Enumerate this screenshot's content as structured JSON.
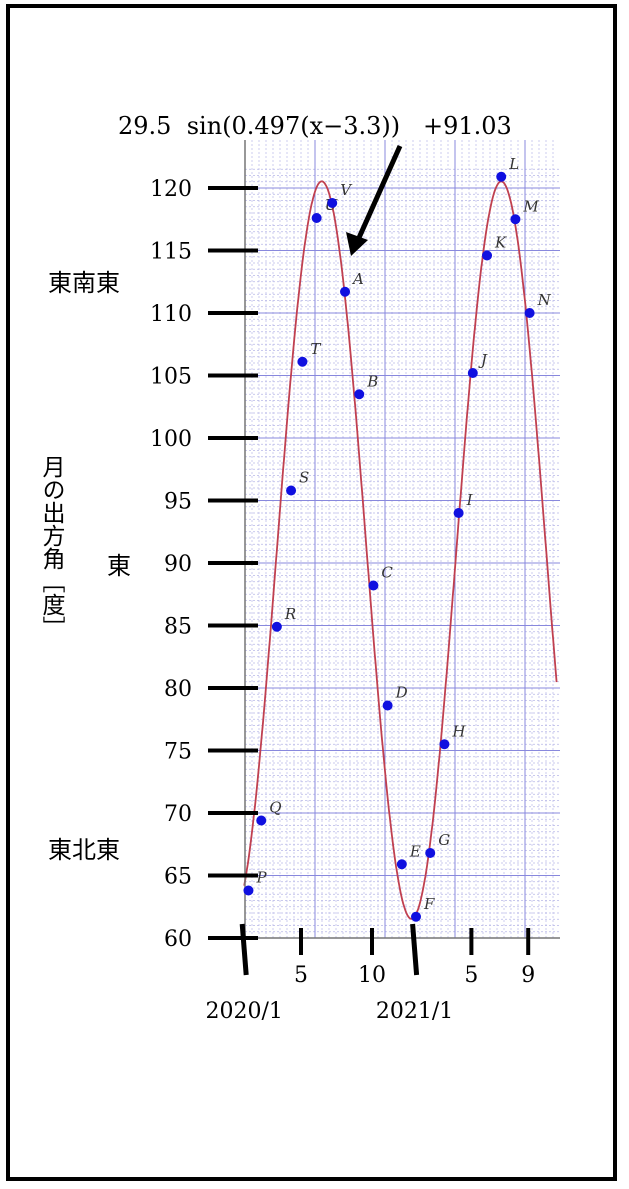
{
  "formula": "29.5  sin(0.497(x−3.3))   +91.03",
  "direction_labels": {
    "ese": "東南東",
    "e": "東",
    "ene": "東北東"
  },
  "chart_data": {
    "type": "scatter",
    "title": "",
    "ylabel": "月の出方角［度］",
    "xlabel": "",
    "ylim": [
      60,
      120
    ],
    "y_ticks": [
      60,
      65,
      70,
      75,
      80,
      85,
      90,
      95,
      100,
      105,
      110,
      115,
      120
    ],
    "x_ticks": [
      {
        "month": 5,
        "label": "5"
      },
      {
        "month": 10,
        "label": "10"
      },
      {
        "month": 17,
        "label": "5"
      },
      {
        "month": 21,
        "label": "9"
      }
    ],
    "year_labels": [
      {
        "month": 1,
        "label": "2020/1"
      },
      {
        "month": 13,
        "label": "2021/1"
      }
    ],
    "points": [
      {
        "label": "P",
        "x": 1.3,
        "y": 63.8
      },
      {
        "label": "Q",
        "x": 2.2,
        "y": 69.4
      },
      {
        "label": "R",
        "x": 3.3,
        "y": 84.9
      },
      {
        "label": "S",
        "x": 4.3,
        "y": 95.8
      },
      {
        "label": "T",
        "x": 5.1,
        "y": 106.1
      },
      {
        "label": "U",
        "x": 6.1,
        "y": 117.6
      },
      {
        "label": "V",
        "x": 7.2,
        "y": 118.8
      },
      {
        "label": "A",
        "x": 8.1,
        "y": 111.7
      },
      {
        "label": "B",
        "x": 9.1,
        "y": 103.5
      },
      {
        "label": "C",
        "x": 10.1,
        "y": 88.2
      },
      {
        "label": "D",
        "x": 11.1,
        "y": 78.6
      },
      {
        "label": "E",
        "x": 12.1,
        "y": 65.9
      },
      {
        "label": "F",
        "x": 13.1,
        "y": 61.7
      },
      {
        "label": "G",
        "x": 14.1,
        "y": 66.8
      },
      {
        "label": "H",
        "x": 15.1,
        "y": 75.5
      },
      {
        "label": "I",
        "x": 16.1,
        "y": 94.0
      },
      {
        "label": "J",
        "x": 17.1,
        "y": 105.2
      },
      {
        "label": "K",
        "x": 18.1,
        "y": 114.6
      },
      {
        "label": "L",
        "x": 19.1,
        "y": 120.9
      },
      {
        "label": "M",
        "x": 20.1,
        "y": 117.5
      },
      {
        "label": "N",
        "x": 21.1,
        "y": 110.0
      }
    ],
    "fit": {
      "amplitude": 29.5,
      "omega": 0.497,
      "phase": 3.3,
      "offset": 91.03,
      "x_range": [
        1,
        23
      ]
    },
    "colors": {
      "points": "#1010e0",
      "fit": "#c04050",
      "grid_major": "#8888dd",
      "grid_minor": "#b8b8e8"
    }
  }
}
